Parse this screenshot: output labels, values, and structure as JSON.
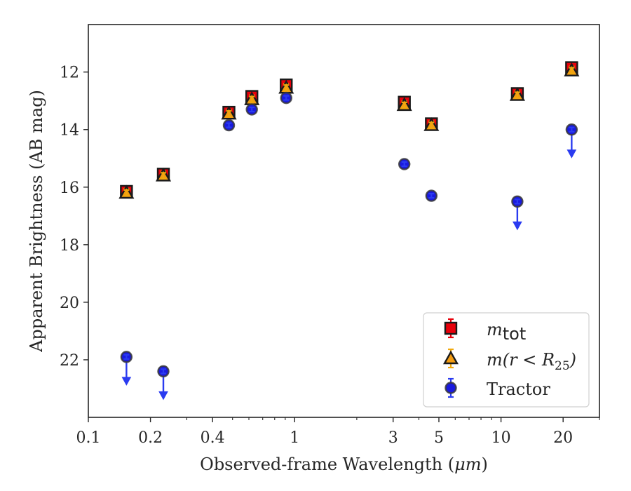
{
  "chart_data": {
    "type": "scatter",
    "xlabel_prefix": "Observed-frame Wavelength (",
    "xlabel_unit": "μm",
    "xlabel_suffix": ")",
    "ylabel": "Apparent Brightness (AB mag)",
    "xscale": "log",
    "xlim": [
      0.1,
      30
    ],
    "ylim": [
      24.0,
      10.35
    ],
    "y_inverted": true,
    "x_ticks": [
      {
        "value": 0.1,
        "label": "0.1"
      },
      {
        "value": 0.2,
        "label": "0.2"
      },
      {
        "value": 0.4,
        "label": "0.4"
      },
      {
        "value": 1,
        "label": "1"
      },
      {
        "value": 3,
        "label": "3"
      },
      {
        "value": 5,
        "label": "5"
      },
      {
        "value": 10,
        "label": "10"
      },
      {
        "value": 20,
        "label": "20"
      }
    ],
    "x_minor_ticks": [
      0.3,
      0.5,
      0.6,
      0.7,
      0.8,
      0.9,
      2,
      4,
      6,
      7,
      8,
      9,
      30
    ],
    "y_ticks": [
      {
        "value": 12,
        "label": "12"
      },
      {
        "value": 14,
        "label": "14"
      },
      {
        "value": 16,
        "label": "16"
      },
      {
        "value": 18,
        "label": "18"
      },
      {
        "value": 20,
        "label": "20"
      },
      {
        "value": 22,
        "label": "22"
      }
    ],
    "legend_position": "lower right",
    "series": [
      {
        "name": "m_tot",
        "legend_label_base": "m",
        "legend_label_sub": "tot",
        "marker": "square",
        "color": "#e8000b",
        "edge_color": "#1a1a1a",
        "err_color": "#e8000b",
        "points": [
          {
            "x": 0.153,
            "y": 16.15
          },
          {
            "x": 0.231,
            "y": 15.55
          },
          {
            "x": 0.48,
            "y": 13.4
          },
          {
            "x": 0.62,
            "y": 12.85
          },
          {
            "x": 0.91,
            "y": 12.45
          },
          {
            "x": 3.4,
            "y": 13.05
          },
          {
            "x": 4.6,
            "y": 13.8
          },
          {
            "x": 12.0,
            "y": 12.75
          },
          {
            "x": 22.0,
            "y": 11.85
          }
        ]
      },
      {
        "name": "m(r<R25)",
        "legend_label_base": "m(r < R",
        "legend_label_sub": "25",
        "legend_label_end": ")",
        "marker": "triangle",
        "color": "#f39c12",
        "edge_color": "#1a1a1a",
        "err_color": "#f1a90d",
        "points": [
          {
            "x": 0.153,
            "y": 16.2
          },
          {
            "x": 0.231,
            "y": 15.6
          },
          {
            "x": 0.48,
            "y": 13.45
          },
          {
            "x": 0.62,
            "y": 12.95
          },
          {
            "x": 0.91,
            "y": 12.55
          },
          {
            "x": 3.4,
            "y": 13.15
          },
          {
            "x": 4.6,
            "y": 13.85
          },
          {
            "x": 12.0,
            "y": 12.8
          },
          {
            "x": 22.0,
            "y": 11.95
          }
        ]
      },
      {
        "name": "Tractor",
        "legend_label_base": "Tractor",
        "marker": "circle",
        "color": "#1a1adf",
        "edge_color": "#3a3a3a",
        "err_color": "#2a3bf0",
        "points": [
          {
            "x": 0.153,
            "y": 21.9,
            "upper_limit": true
          },
          {
            "x": 0.231,
            "y": 22.4,
            "upper_limit": true
          },
          {
            "x": 0.48,
            "y": 13.85
          },
          {
            "x": 0.62,
            "y": 13.3
          },
          {
            "x": 0.91,
            "y": 12.9
          },
          {
            "x": 3.4,
            "y": 15.2
          },
          {
            "x": 4.6,
            "y": 16.3
          },
          {
            "x": 12.0,
            "y": 16.5,
            "upper_limit": true
          },
          {
            "x": 22.0,
            "y": 14.0,
            "upper_limit": true
          }
        ]
      }
    ]
  }
}
